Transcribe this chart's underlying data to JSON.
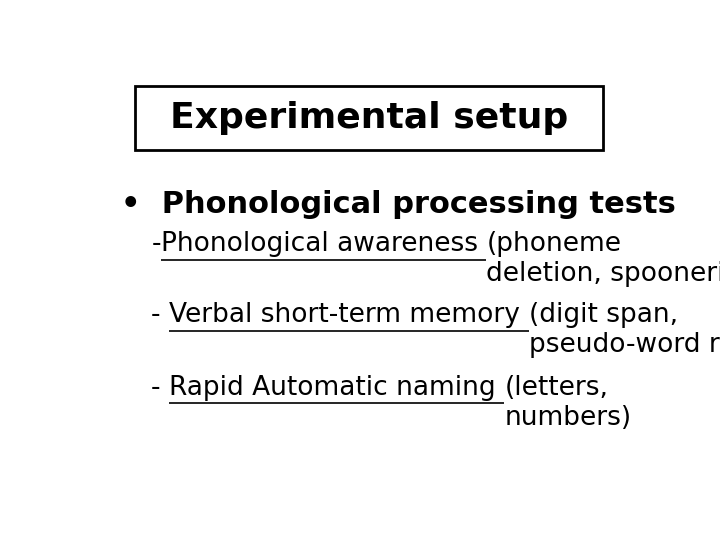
{
  "title": "Experimental setup",
  "background_color": "#ffffff",
  "title_fontsize": 26,
  "box_color": "#000000",
  "bullet_text": "Phonological processing tests",
  "bullet_fontsize": 22,
  "item_fontsize": 19,
  "items": [
    {
      "prefix": "-",
      "underlined": "Phonological awareness ",
      "rest": "(phoneme\ndeletion, spoonerism)"
    },
    {
      "prefix": "- ",
      "underlined": "Verbal short-term memory ",
      "rest": "(digit span,\npseudo-word repetition)"
    },
    {
      "prefix": "- ",
      "underlined": "Rapid Automatic naming ",
      "rest": "(letters,\nnumbers)"
    }
  ]
}
